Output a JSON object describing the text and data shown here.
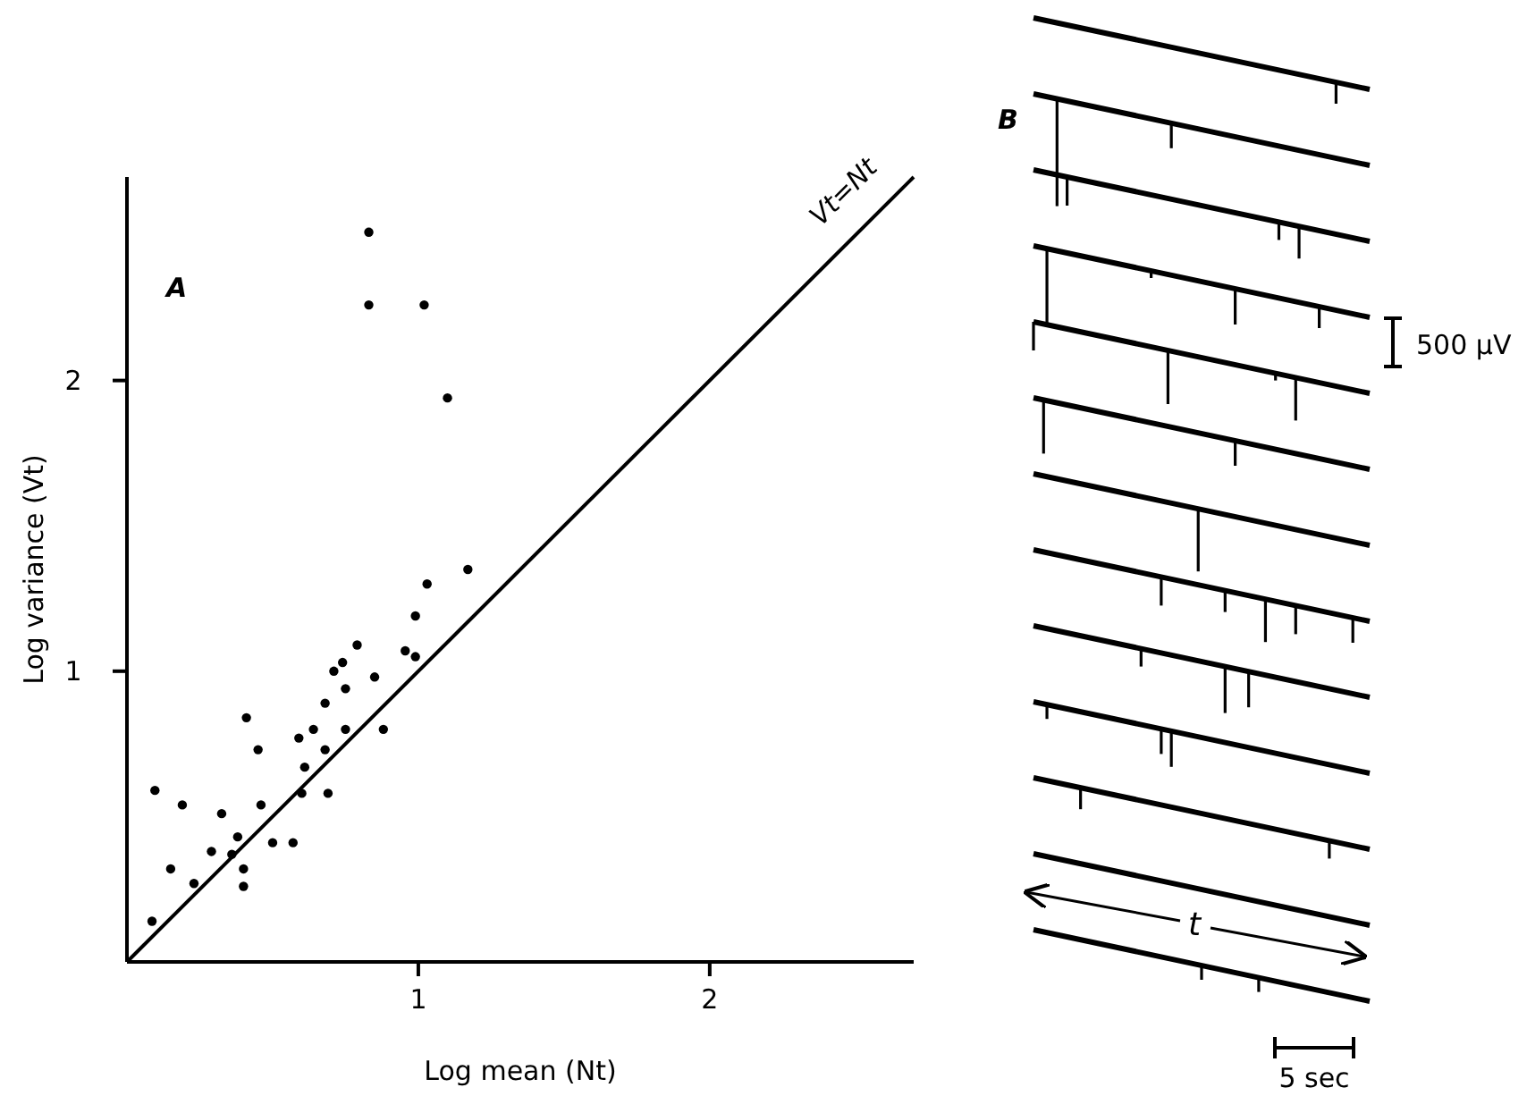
{
  "chart_data": {
    "type": "scatter",
    "xlabel": "Log mean (Nt)",
    "ylabel": "Log variance (Vt)",
    "xlim": [
      0,
      2.7
    ],
    "ylim": [
      0,
      2.7
    ],
    "xticks": [
      1,
      2
    ],
    "yticks": [
      1,
      2
    ],
    "grid": false,
    "marker": "circle",
    "annotations": [
      "A",
      "B",
      "500 µV",
      "t",
      "5 sec"
    ],
    "series": [
      {
        "color": "#000000",
        "x": [
          0.096,
          0.19,
          0.15,
          0.23,
          0.086,
          0.29,
          0.325,
          0.36,
          0.38,
          0.4,
          0.4,
          0.41,
          0.45,
          0.46,
          0.5,
          0.57,
          0.59,
          0.6,
          0.61,
          0.64,
          0.68,
          0.68,
          0.69,
          0.71,
          0.74,
          0.75,
          0.75,
          0.79,
          0.85,
          0.88,
          0.955,
          0.99,
          0.99,
          1.03,
          1.17,
          0.83,
          0.83,
          1.02,
          1.1
        ],
        "values": [
          0.59,
          0.54,
          0.32,
          0.27,
          0.14,
          0.38,
          0.51,
          0.37,
          0.43,
          0.32,
          0.26,
          0.84,
          0.73,
          0.54,
          0.41,
          0.41,
          0.77,
          0.58,
          0.67,
          0.8,
          0.89,
          0.73,
          0.58,
          1.0,
          1.03,
          0.94,
          0.8,
          1.09,
          0.98,
          0.8,
          1.07,
          1.19,
          1.05,
          1.3,
          1.35,
          2.51,
          2.26,
          2.26,
          1.94
        ]
      },
      {
        "type": "line",
        "name": "Vt=Nt",
        "color": "#000000",
        "marker": "none",
        "line_style": "solid",
        "x": [
          0,
          2.7
        ],
        "values": [
          0,
          2.7
        ]
      }
    ]
  }
}
